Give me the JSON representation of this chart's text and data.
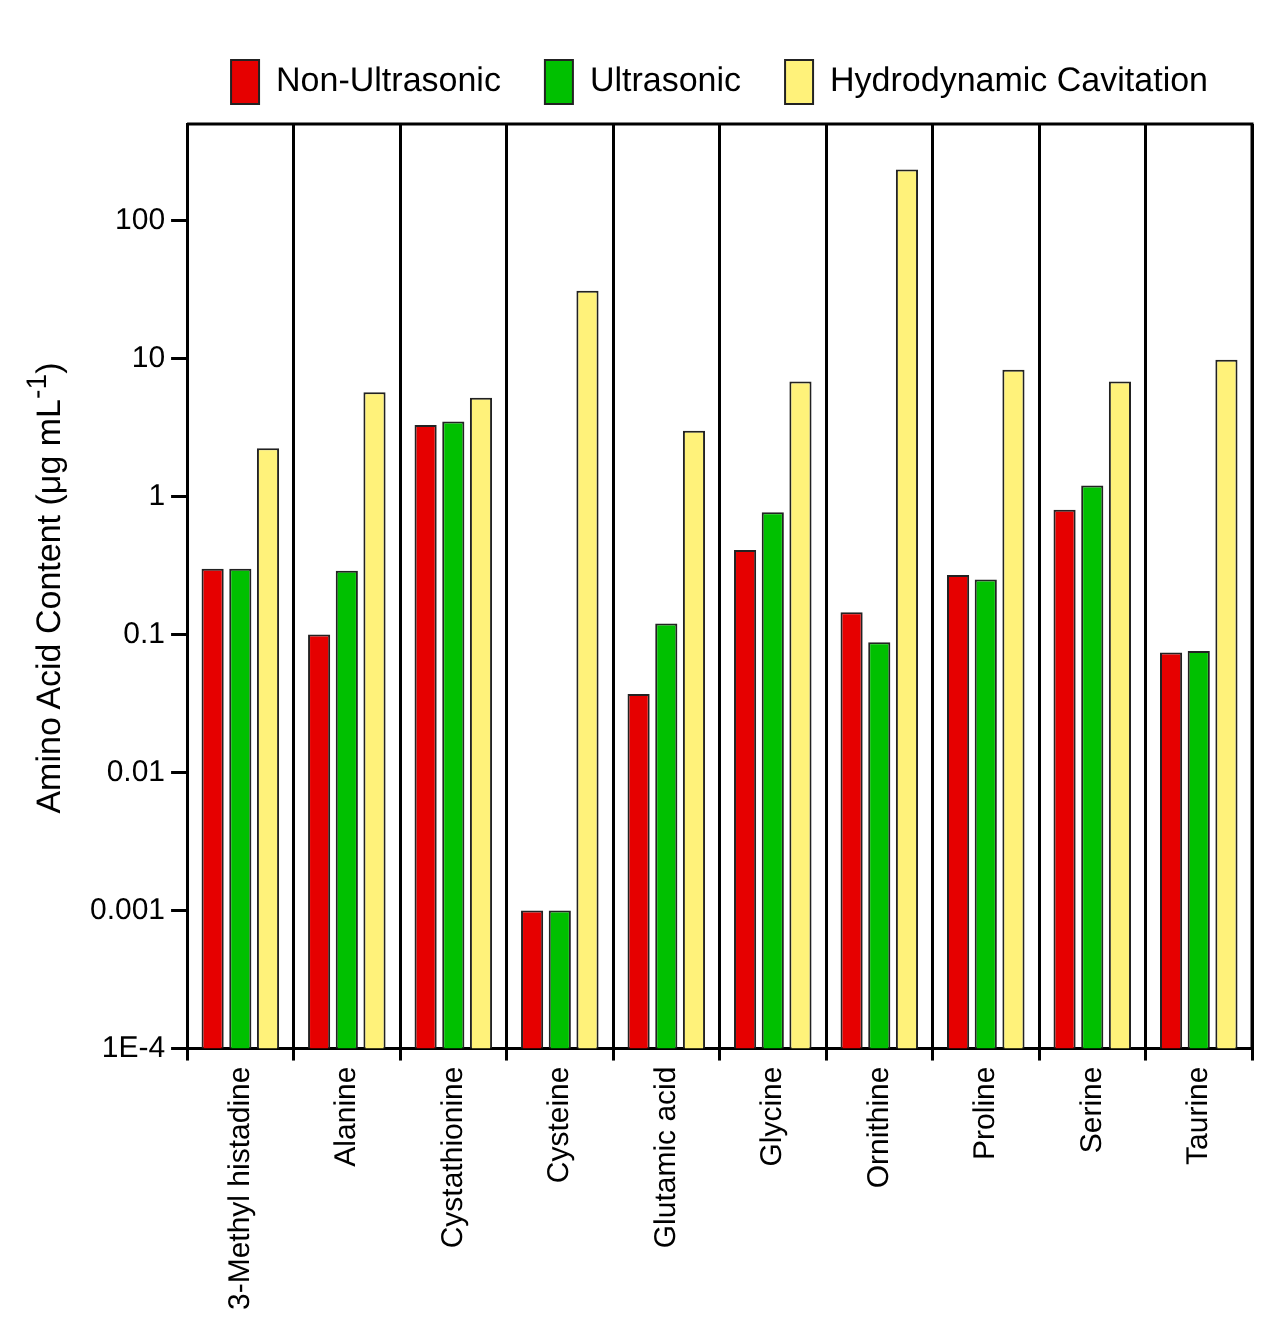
{
  "chart_data": {
    "type": "bar",
    "ylabel": "Amino Acid Content (μg mL$^{-1}$)",
    "categories": [
      "3-Methyl histadine",
      "Alanine",
      "Cystathionine",
      "Cysteine",
      "Glutamic acid",
      "Glycine",
      "Ornithine",
      "Proline",
      "Serine",
      "Taurine"
    ],
    "series": [
      {
        "name": "Non-Ultrasonic",
        "color": "#e60000",
        "values": [
          0.3,
          0.1,
          3.3,
          0.001,
          0.037,
          0.41,
          0.145,
          0.27,
          0.8,
          0.074
        ]
      },
      {
        "name": "Ultrasonic",
        "color": "#00c000",
        "values": [
          0.3,
          0.29,
          3.5,
          0.001,
          0.12,
          0.77,
          0.088,
          0.25,
          1.2,
          0.076
        ]
      },
      {
        "name": "Hydrodynamic Cavitation",
        "color": "#fff27a",
        "values": [
          2.24,
          5.7,
          5.2,
          31,
          3.0,
          6.8,
          234,
          8.3,
          6.8,
          9.8
        ]
      }
    ],
    "log": true,
    "ylim": [
      0.0001,
      500
    ],
    "yticks": [
      {
        "value": 0.0001,
        "label": "1E-4"
      },
      0.001,
      0.01,
      0.1,
      1,
      10,
      100
    ],
    "grid": "x",
    "legend": "top"
  }
}
